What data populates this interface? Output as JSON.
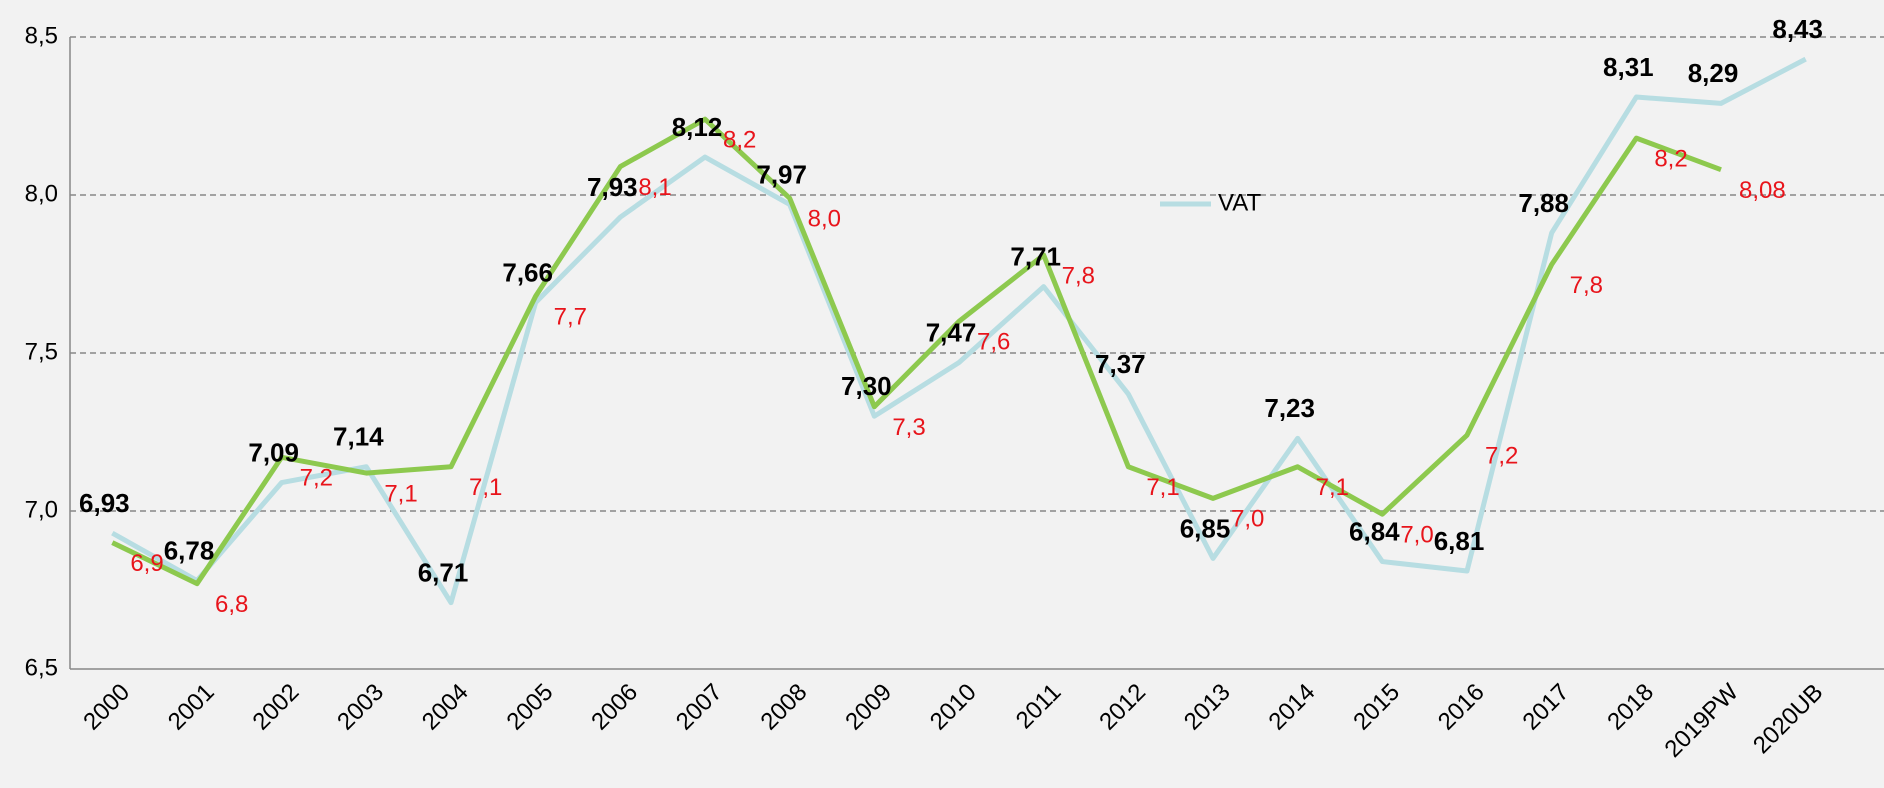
{
  "chart_data": {
    "type": "line",
    "categories": [
      "2000",
      "2001",
      "2002",
      "2003",
      "2004",
      "2005",
      "2006",
      "2007",
      "2008",
      "2009",
      "2010",
      "2011",
      "2012",
      "2013",
      "2014",
      "2015",
      "2016",
      "2017",
      "2018",
      "2019PW",
      "2020UB"
    ],
    "series": [
      {
        "name": "VAT",
        "color": "#b7dde2",
        "values": [
          6.93,
          6.78,
          7.09,
          7.14,
          6.71,
          7.66,
          7.93,
          8.12,
          7.97,
          7.3,
          7.47,
          7.71,
          7.37,
          6.85,
          7.23,
          6.84,
          6.81,
          7.88,
          8.31,
          8.29,
          8.43
        ],
        "value_labels": [
          "6,93",
          "6,78",
          "7,09",
          "7,14",
          "6,71",
          "7,66",
          "7,93",
          "8,12",
          "7,97",
          "7,30",
          "7,47",
          "7,71",
          "7,37",
          "6,85",
          "7,23",
          "6,84",
          "6,81",
          "7,88",
          "8,31",
          "8,29",
          "8,43"
        ]
      },
      {
        "color": "#8dc94e",
        "values": [
          6.9,
          6.77,
          7.17,
          7.12,
          7.14,
          7.68,
          8.09,
          8.24,
          7.99,
          7.33,
          7.6,
          7.81,
          7.14,
          7.04,
          7.14,
          6.99,
          7.24,
          7.78,
          8.18,
          8.08,
          null
        ],
        "value_labels": [
          "6,9",
          "6,8",
          "7,2",
          "7,1",
          "7,1",
          "7,7",
          "8,1",
          "8,2",
          "8,0",
          "7,3",
          "7,6",
          "7,8",
          "7,1",
          "7,0",
          "7,1",
          "7,0",
          "7,2",
          "7,8",
          "8,2",
          "8,08",
          null
        ]
      }
    ],
    "ylim": [
      6.5,
      8.5
    ],
    "yticks": [
      {
        "value": 6.5,
        "label": "6,5"
      },
      {
        "value": 7.0,
        "label": "7,0"
      },
      {
        "value": 7.5,
        "label": "7,5"
      },
      {
        "value": 8.0,
        "label": "8,0"
      },
      {
        "value": 8.5,
        "label": "8,5"
      }
    ],
    "grid": true
  }
}
